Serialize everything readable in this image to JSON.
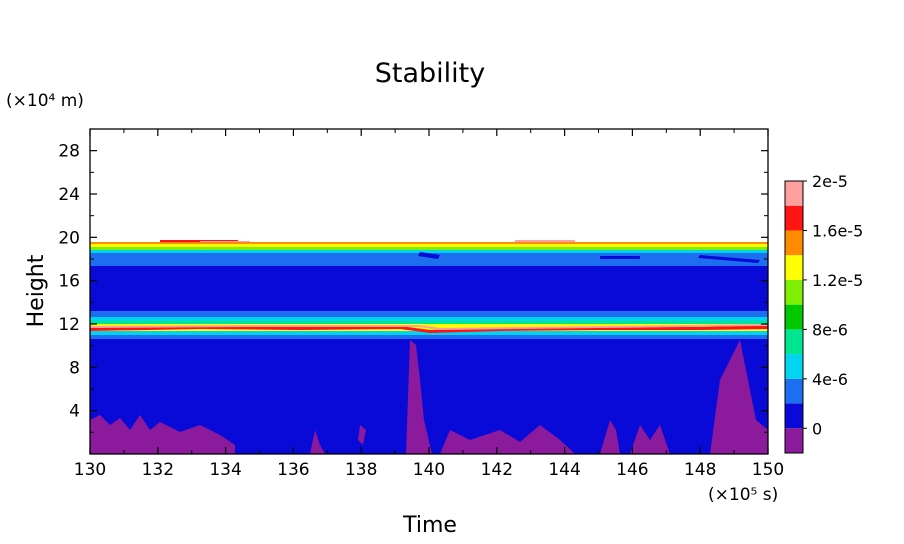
{
  "chart_data": {
    "type": "heatmap",
    "title": "Stability",
    "xlabel": "Time",
    "ylabel": "Height",
    "x_unit": "(×10⁵ s)",
    "y_unit": "(×10⁴ m)",
    "xlim": [
      130,
      150
    ],
    "ylim": [
      0,
      30
    ],
    "x_ticks": [
      "130",
      "132",
      "134",
      "136",
      "138",
      "140",
      "142",
      "144",
      "146",
      "148",
      "150"
    ],
    "y_ticks": [
      "4",
      "8",
      "12",
      "16",
      "20",
      "24",
      "28"
    ],
    "colorbar": {
      "labels": [
        "0",
        "4e-6",
        "8e-6",
        "1.2e-5",
        "1.6e-5",
        "2e-5"
      ],
      "levels": [
        {
          "from": -2e-06,
          "to": 0,
          "color": "#8b1a9c"
        },
        {
          "from": 0,
          "to": 2e-06,
          "color": "#0a0ad8"
        },
        {
          "from": 2e-06,
          "to": 4e-06,
          "color": "#1e6ff0"
        },
        {
          "from": 4e-06,
          "to": 6e-06,
          "color": "#00d4f0"
        },
        {
          "from": 6e-06,
          "to": 8e-06,
          "color": "#00e690"
        },
        {
          "from": 8e-06,
          "to": 1e-05,
          "color": "#00c800"
        },
        {
          "from": 1e-05,
          "to": 1.2e-05,
          "color": "#80ee00"
        },
        {
          "from": 1.2e-05,
          "to": 1.4e-05,
          "color": "#ffff00"
        },
        {
          "from": 1.4e-05,
          "to": 1.6e-05,
          "color": "#ff8c00"
        },
        {
          "from": 1.6e-05,
          "to": 1.8e-05,
          "color": "#ff1414"
        },
        {
          "from": 1.8e-05,
          "to": 2e-05,
          "color": "#ffa0a0"
        }
      ]
    },
    "regions": [
      {
        "name": "surface-negative-layer",
        "y_range": [
          0,
          2.5
        ],
        "color": "#8b1a9c"
      },
      {
        "name": "troposphere-low-stability",
        "y_range": [
          0,
          10.8
        ],
        "color": "#0a0ad8"
      },
      {
        "name": "tropopause-band-1",
        "y_range": [
          10.8,
          12.2
        ],
        "max_value": 2e-05
      },
      {
        "name": "lower-stratosphere-low-stability",
        "y_range": [
          12.2,
          18.5
        ],
        "color": "#0a0ad8"
      },
      {
        "name": "upper-band",
        "y_range": [
          18.5,
          19.5
        ],
        "max_value": 2e-05
      },
      {
        "name": "undefined-above",
        "y_range": [
          19.5,
          30
        ],
        "color": "#ffffff"
      }
    ]
  }
}
